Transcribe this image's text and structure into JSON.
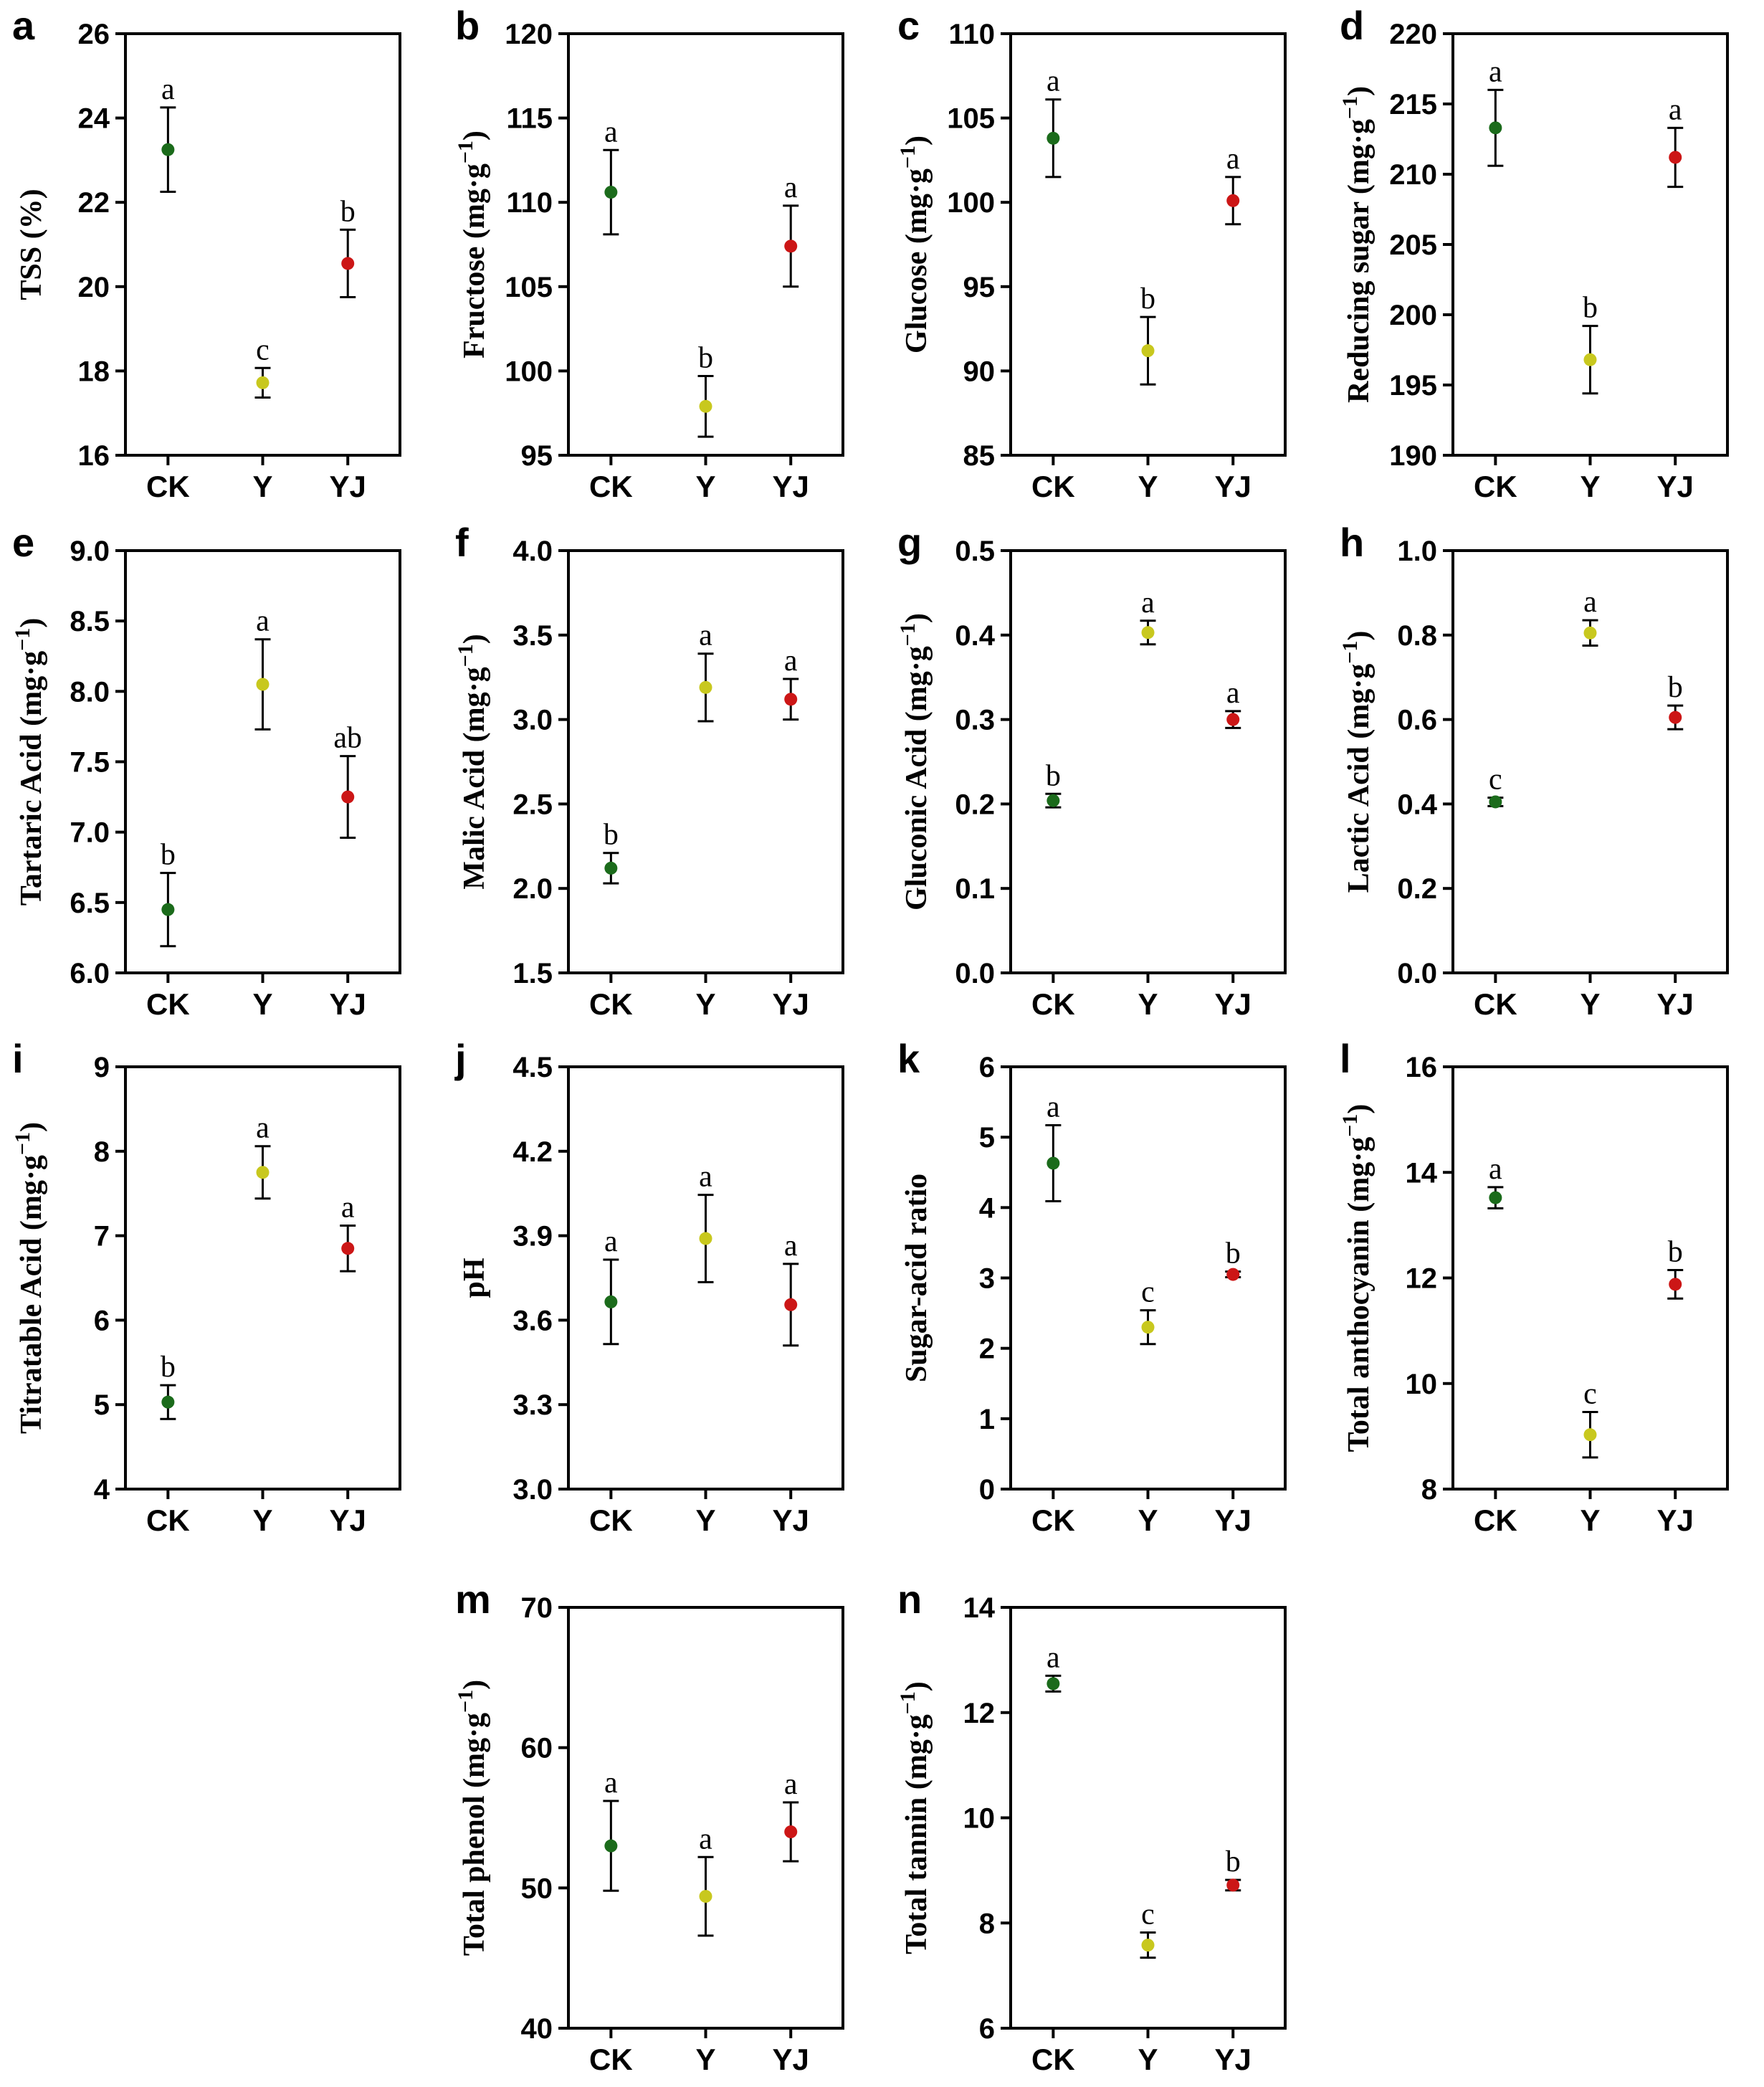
{
  "colors": {
    "CK": "#1b6b1b",
    "Y": "#c8c81e",
    "YJ": "#cc1616"
  },
  "chart_data": [
    {
      "id": "a",
      "type": "scatter",
      "ylabel": "TSS (%)",
      "ylim": [
        16,
        26
      ],
      "yticks": [
        16,
        18,
        20,
        22,
        24,
        26
      ],
      "categories": [
        "CK",
        "Y",
        "YJ"
      ],
      "values": [
        23.25,
        17.72,
        20.55
      ],
      "errors": [
        1.0,
        0.35,
        0.8
      ],
      "letters": [
        "a",
        "c",
        "b"
      ]
    },
    {
      "id": "b",
      "type": "scatter",
      "ylabel": "Fructose",
      "ylim": [
        95,
        120
      ],
      "yticks": [
        95,
        100,
        105,
        110,
        115,
        120
      ],
      "categories": [
        "CK",
        "Y",
        "YJ"
      ],
      "values": [
        110.6,
        97.9,
        107.4
      ],
      "errors": [
        2.5,
        1.8,
        2.4
      ],
      "letters": [
        "a",
        "b",
        "a"
      ]
    },
    {
      "id": "c",
      "type": "scatter",
      "ylabel": "Glucose",
      "ylim": [
        85,
        110
      ],
      "yticks": [
        85,
        90,
        95,
        100,
        105,
        110
      ],
      "categories": [
        "CK",
        "Y",
        "YJ"
      ],
      "values": [
        103.8,
        91.2,
        100.1
      ],
      "errors": [
        2.3,
        2.0,
        1.4
      ],
      "letters": [
        "a",
        "b",
        "a"
      ]
    },
    {
      "id": "d",
      "type": "scatter",
      "ylabel": "Reducing sugar",
      "ylim": [
        190,
        220
      ],
      "yticks": [
        190,
        195,
        200,
        205,
        210,
        215,
        220
      ],
      "categories": [
        "CK",
        "Y",
        "YJ"
      ],
      "values": [
        213.3,
        196.8,
        211.2
      ],
      "errors": [
        2.7,
        2.4,
        2.1
      ],
      "letters": [
        "a",
        "b",
        "a"
      ]
    },
    {
      "id": "e",
      "type": "scatter",
      "ylabel": "Tartaric Acid",
      "ylim": [
        6.0,
        9.0
      ],
      "yticks": [
        6.0,
        6.5,
        7.0,
        7.5,
        8.0,
        8.5,
        9.0
      ],
      "decimals": 1,
      "categories": [
        "CK",
        "Y",
        "YJ"
      ],
      "values": [
        6.45,
        8.05,
        7.25
      ],
      "errors": [
        0.26,
        0.32,
        0.29
      ],
      "letters": [
        "b",
        "a",
        "ab"
      ]
    },
    {
      "id": "f",
      "type": "scatter",
      "ylabel": "Malic Acid",
      "ylim": [
        1.5,
        4.0
      ],
      "yticks": [
        1.5,
        2.0,
        2.5,
        3.0,
        3.5,
        4.0
      ],
      "decimals": 1,
      "categories": [
        "CK",
        "Y",
        "YJ"
      ],
      "values": [
        2.12,
        3.19,
        3.12
      ],
      "errors": [
        0.09,
        0.2,
        0.12
      ],
      "letters": [
        "b",
        "a",
        "a"
      ]
    },
    {
      "id": "g",
      "type": "scatter",
      "ylabel": "Gluconic Acid",
      "ylim": [
        0.0,
        0.5
      ],
      "yticks": [
        0.0,
        0.1,
        0.2,
        0.3,
        0.4,
        0.5
      ],
      "decimals": 1,
      "categories": [
        "CK",
        "Y",
        "YJ"
      ],
      "values": [
        0.204,
        0.403,
        0.3
      ],
      "errors": [
        0.008,
        0.014,
        0.01
      ],
      "letters": [
        "b",
        "a",
        "a"
      ]
    },
    {
      "id": "h",
      "type": "scatter",
      "ylabel": "Lactic Acid",
      "ylim": [
        0.0,
        1.0
      ],
      "yticks": [
        0.0,
        0.2,
        0.4,
        0.6,
        0.8,
        1.0
      ],
      "decimals": 1,
      "categories": [
        "CK",
        "Y",
        "YJ"
      ],
      "values": [
        0.405,
        0.805,
        0.605
      ],
      "errors": [
        0.01,
        0.03,
        0.028
      ],
      "letters": [
        "c",
        "a",
        "b"
      ]
    },
    {
      "id": "i",
      "type": "scatter",
      "ylabel": "Titratable Acid",
      "ylim": [
        4,
        9
      ],
      "yticks": [
        4,
        5,
        6,
        7,
        8,
        9
      ],
      "categories": [
        "CK",
        "Y",
        "YJ"
      ],
      "values": [
        5.03,
        7.75,
        6.85
      ],
      "errors": [
        0.2,
        0.31,
        0.27
      ],
      "letters": [
        "b",
        "a",
        "a"
      ]
    },
    {
      "id": "j",
      "type": "scatter",
      "ylabel": "pH",
      "ylim": [
        3.0,
        4.5
      ],
      "yticks": [
        3.0,
        3.3,
        3.6,
        3.9,
        4.2,
        4.5
      ],
      "decimals": 1,
      "categories": [
        "CK",
        "Y",
        "YJ"
      ],
      "values": [
        3.665,
        3.89,
        3.655
      ],
      "errors": [
        0.15,
        0.155,
        0.145
      ],
      "letters": [
        "a",
        "a",
        "a"
      ]
    },
    {
      "id": "k",
      "type": "scatter",
      "ylabel": "Sugar-acid ratio",
      "ylim": [
        0,
        6
      ],
      "yticks": [
        0,
        1,
        2,
        3,
        4,
        5,
        6
      ],
      "categories": [
        "CK",
        "Y",
        "YJ"
      ],
      "values": [
        4.63,
        2.3,
        3.05
      ],
      "errors": [
        0.54,
        0.24,
        0.04
      ],
      "letters": [
        "a",
        "c",
        "b"
      ]
    },
    {
      "id": "l",
      "type": "scatter",
      "ylabel": "Total anthocyanin",
      "ylim": [
        8,
        16
      ],
      "yticks": [
        8,
        10,
        12,
        14,
        16
      ],
      "categories": [
        "CK",
        "Y",
        "YJ"
      ],
      "values": [
        13.52,
        9.03,
        11.88
      ],
      "errors": [
        0.2,
        0.43,
        0.27
      ],
      "letters": [
        "a",
        "c",
        "b"
      ]
    },
    {
      "id": "m",
      "type": "scatter",
      "ylabel": "Total phenol",
      "ylim": [
        40,
        70
      ],
      "yticks": [
        40,
        50,
        60,
        70
      ],
      "categories": [
        "CK",
        "Y",
        "YJ"
      ],
      "values": [
        53.0,
        49.4,
        54.0
      ],
      "errors": [
        3.2,
        2.8,
        2.1
      ],
      "letters": [
        "a",
        "a",
        "a"
      ]
    },
    {
      "id": "n",
      "type": "scatter",
      "ylabel": "Total tannin",
      "ylim": [
        6,
        14
      ],
      "yticks": [
        6,
        8,
        10,
        12,
        14
      ],
      "categories": [
        "CK",
        "Y",
        "YJ"
      ],
      "values": [
        12.55,
        7.58,
        8.72
      ],
      "errors": [
        0.15,
        0.24,
        0.1
      ],
      "letters": [
        "a",
        "c",
        "b"
      ]
    }
  ],
  "unit": {
    "base": "(mg·g",
    "sup": "−1",
    "close": ")"
  }
}
